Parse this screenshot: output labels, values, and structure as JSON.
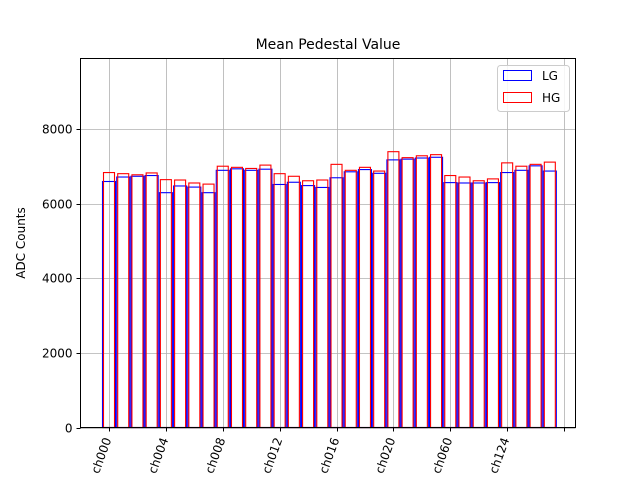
{
  "chart_data": {
    "type": "bar",
    "title": "Mean Pedestal Value",
    "xlabel": "",
    "ylabel": "ADC Counts",
    "ylim": [
      0,
      9900
    ],
    "yticks": [
      0,
      2000,
      4000,
      6000,
      8000
    ],
    "grid": true,
    "legend_position": "top-right",
    "x_tick_labels": [
      "ch000",
      "ch004",
      "ch008",
      "ch012",
      "ch016",
      "ch020",
      "ch060",
      "ch124"
    ],
    "x_tick_label_rotation": 70,
    "series": [
      {
        "name": "LG",
        "color": "#0000ff",
        "values": [
          6600,
          6720,
          6740,
          6760,
          6300,
          6480,
          6450,
          6300,
          6900,
          6940,
          6900,
          6930,
          6520,
          6580,
          6490,
          6440,
          6700,
          6860,
          6920,
          6820,
          7180,
          7200,
          7230,
          7250,
          6570,
          6560,
          6560,
          6570,
          6840,
          6900,
          7020,
          6880
        ]
      },
      {
        "name": "HG",
        "color": "#ff0000",
        "values": [
          6840,
          6810,
          6780,
          6830,
          6650,
          6640,
          6560,
          6530,
          7010,
          6980,
          6950,
          7040,
          6810,
          6740,
          6620,
          6640,
          7060,
          6900,
          6980,
          6880,
          7400,
          7240,
          7290,
          7320,
          6760,
          6720,
          6620,
          6670,
          7100,
          7010,
          7060,
          7120
        ]
      }
    ]
  }
}
